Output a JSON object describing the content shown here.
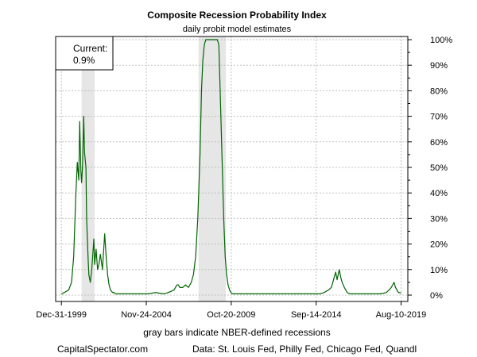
{
  "chart_data": {
    "type": "line",
    "title": "Composite Recession Probability Index",
    "subtitle": "daily probit model estimates",
    "x_tick_labels": [
      "Dec-31-1999",
      "Nov-24-2004",
      "Oct-20-2009",
      "Sep-14-2014",
      "Aug-10-2019"
    ],
    "y_tick_labels": [
      "0%",
      "10%",
      "20%",
      "30%",
      "40%",
      "50%",
      "60%",
      "70%",
      "80%",
      "90%",
      "100%"
    ],
    "xlim": [
      "1999-09-01",
      "2019-12-31"
    ],
    "ylim": [
      0,
      100
    ],
    "grid": true,
    "line_color": "#006400",
    "recession_color": "#e6e6e6",
    "recessions": [
      {
        "start": "2001-03-01",
        "end": "2001-11-30"
      },
      {
        "start": "2007-12-01",
        "end": "2009-06-30"
      }
    ],
    "series": [
      {
        "x": [
          "1999-12-31",
          "2000-03-01",
          "2000-06-01",
          "2000-08-01",
          "2000-09-15",
          "2000-11-01",
          "2000-12-01",
          "2001-01-01",
          "2001-01-20",
          "2001-02-15",
          "2001-03-01",
          "2001-03-20",
          "2001-04-15",
          "2001-05-01",
          "2001-06-01",
          "2001-06-15",
          "2001-07-15",
          "2001-08-01",
          "2001-09-01",
          "2001-10-01",
          "2001-10-20",
          "2001-11-15",
          "2001-12-01",
          "2002-01-01",
          "2002-02-01",
          "2002-03-01",
          "2002-04-01",
          "2002-05-15",
          "2002-07-01",
          "2002-08-01",
          "2002-09-01",
          "2002-10-01",
          "2002-11-01",
          "2002-12-15",
          "2003-01-15",
          "2003-02-15",
          "2003-03-15",
          "2003-04-15",
          "2003-06-01",
          "2003-07-15",
          "2003-09-01",
          "2003-11-01",
          "2004-03-01",
          "2004-08-01",
          "2005-01-01",
          "2005-06-01",
          "2005-12-01",
          "2006-03-01",
          "2006-07-01",
          "2006-09-01",
          "2006-10-01",
          "2006-11-01",
          "2007-01-01",
          "2007-03-01",
          "2007-05-01",
          "2007-07-01",
          "2007-08-15",
          "2007-10-01",
          "2007-11-15",
          "2008-01-01",
          "2008-02-01",
          "2008-03-01",
          "2008-04-01",
          "2008-05-01",
          "2008-06-01",
          "2008-07-01",
          "2008-08-01",
          "2008-09-01",
          "2008-10-01",
          "2009-01-01",
          "2009-02-01",
          "2009-03-01",
          "2009-04-15",
          "2009-05-15",
          "2009-06-15",
          "2009-07-15",
          "2009-08-15",
          "2009-09-15",
          "2009-10-15",
          "2009-11-15",
          "2009-12-15",
          "2010-02-01",
          "2010-06-01",
          "2011-01-01",
          "2011-08-01",
          "2012-01-01",
          "2012-08-01",
          "2013-03-01",
          "2013-10-01",
          "2014-06-01",
          "2014-12-01",
          "2015-03-01",
          "2015-06-01",
          "2015-08-01",
          "2015-09-01",
          "2015-10-01",
          "2015-11-01",
          "2015-12-01",
          "2016-01-15",
          "2016-02-15",
          "2016-03-15",
          "2016-05-01",
          "2016-07-01",
          "2016-09-01",
          "2016-12-01",
          "2017-06-01",
          "2018-01-01",
          "2018-06-01",
          "2018-10-01",
          "2018-12-01",
          "2019-01-15",
          "2019-02-15",
          "2019-03-15",
          "2019-04-15",
          "2019-05-15",
          "2019-06-15",
          "2019-07-15",
          "2019-08-10"
        ],
        "values": [
          0.5,
          1,
          2,
          5,
          15,
          40,
          52,
          45,
          68,
          48,
          44,
          50,
          70,
          56,
          50,
          30,
          15,
          8,
          5,
          10,
          15,
          22,
          12,
          18,
          10,
          12,
          16,
          10,
          24,
          15,
          8,
          4,
          2,
          1,
          1,
          0.5,
          0.5,
          0.5,
          0.5,
          0.5,
          0.5,
          0.5,
          0.5,
          0.5,
          0.5,
          1,
          0.5,
          1,
          2,
          4,
          4,
          3,
          3,
          4,
          3,
          5,
          8,
          15,
          30,
          55,
          80,
          92,
          98,
          100,
          100,
          100,
          100,
          100,
          100,
          100,
          98,
          80,
          50,
          30,
          15,
          8,
          4,
          2,
          1,
          0.5,
          0.5,
          0.5,
          0.5,
          0.5,
          0.5,
          0.5,
          0.5,
          0.5,
          0.5,
          0.5,
          0.5,
          1,
          2,
          3,
          5,
          7,
          9,
          6,
          10,
          7,
          5,
          3,
          1,
          0.5,
          0.5,
          0.5,
          0.5,
          0.5,
          1,
          2,
          3,
          4,
          5,
          3,
          2,
          1,
          1,
          0.9
        ]
      }
    ],
    "annotation": {
      "label": "Current:",
      "value": "0.9%"
    }
  },
  "notes": {
    "xaxis_note": "gray bars indicate NBER-defined recessions",
    "footer_left": "CapitalSpectator.com",
    "footer_right": "Data: St. Louis Fed, Philly Fed, Chicago Fed, Quandl"
  }
}
